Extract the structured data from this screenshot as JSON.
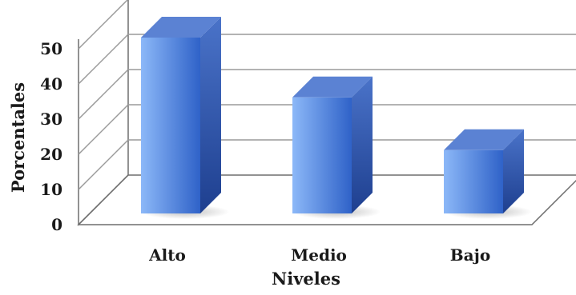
{
  "chart_data": {
    "type": "bar",
    "style": "3d-column",
    "categories": [
      "Alto",
      "Medio",
      "Bajo"
    ],
    "values": [
      50,
      33,
      18
    ],
    "xlabel": "Niveles",
    "ylabel": "Porcentales",
    "ylim": [
      0,
      50
    ],
    "yticks": [
      0,
      10,
      20,
      30,
      40,
      50
    ],
    "grid": true,
    "legend": "none",
    "colors": {
      "bar_front_light": "#8cb8f8",
      "bar_front_dark": "#2f62c8",
      "bar_side_light": "#4a73c9",
      "bar_side_dark": "#1e3f8f",
      "bar_top": "#5b82d3",
      "grid_line": "#9a9a9a",
      "wall_line": "#6e6e6e"
    }
  }
}
